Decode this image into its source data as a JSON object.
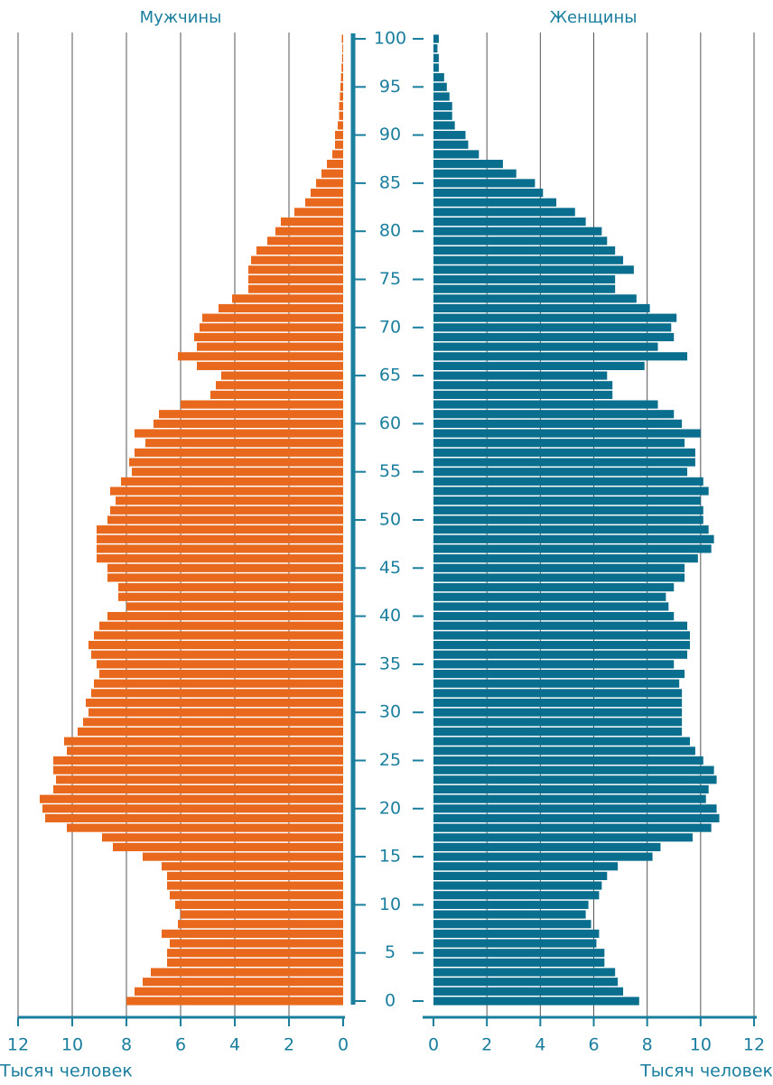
{
  "chart_data": {
    "type": "pyramid",
    "xlabel": "Тысяч человек",
    "xlim": [
      0,
      12
    ],
    "xticks": [
      0,
      2,
      4,
      6,
      8,
      10,
      12
    ],
    "ylim": [
      0,
      100
    ],
    "yticks": [
      0,
      5,
      10,
      15,
      20,
      25,
      30,
      35,
      40,
      45,
      50,
      55,
      60,
      65,
      70,
      75,
      80,
      85,
      90,
      95,
      100
    ],
    "grid": true,
    "y": [
      0,
      1,
      2,
      3,
      4,
      5,
      6,
      7,
      8,
      9,
      10,
      11,
      12,
      13,
      14,
      15,
      16,
      17,
      18,
      19,
      20,
      21,
      22,
      23,
      24,
      25,
      26,
      27,
      28,
      29,
      30,
      31,
      32,
      33,
      34,
      35,
      36,
      37,
      38,
      39,
      40,
      41,
      42,
      43,
      44,
      45,
      46,
      47,
      48,
      49,
      50,
      51,
      52,
      53,
      54,
      55,
      56,
      57,
      58,
      59,
      60,
      61,
      62,
      63,
      64,
      65,
      66,
      67,
      68,
      69,
      70,
      71,
      72,
      73,
      74,
      75,
      76,
      77,
      78,
      79,
      80,
      81,
      82,
      83,
      84,
      85,
      86,
      87,
      88,
      89,
      90,
      91,
      92,
      93,
      94,
      95,
      96,
      97,
      98,
      99,
      100
    ],
    "series": [
      {
        "name": "Мужчины",
        "color": "#e8691e",
        "side": "left",
        "values": [
          8.0,
          7.7,
          7.4,
          7.1,
          6.5,
          6.5,
          6.4,
          6.7,
          6.1,
          6.0,
          6.2,
          6.4,
          6.5,
          6.5,
          6.7,
          7.4,
          8.5,
          8.9,
          10.2,
          11.0,
          11.1,
          11.2,
          10.7,
          10.6,
          10.7,
          10.7,
          10.2,
          10.3,
          9.8,
          9.6,
          9.4,
          9.5,
          9.3,
          9.2,
          9.0,
          9.1,
          9.3,
          9.4,
          9.2,
          9.0,
          8.7,
          8.0,
          8.3,
          8.3,
          8.7,
          8.7,
          9.1,
          9.1,
          9.1,
          9.1,
          8.7,
          8.6,
          8.4,
          8.6,
          8.2,
          7.8,
          7.9,
          7.7,
          7.3,
          7.7,
          7.0,
          6.8,
          6.0,
          4.9,
          4.7,
          4.5,
          5.4,
          6.1,
          5.4,
          5.5,
          5.3,
          5.2,
          4.6,
          4.1,
          3.5,
          3.5,
          3.5,
          3.4,
          3.2,
          2.8,
          2.5,
          2.3,
          1.8,
          1.4,
          1.2,
          1.0,
          0.8,
          0.6,
          0.4,
          0.3,
          0.3,
          0.2,
          0.15,
          0.15,
          0.12,
          0.1,
          0.08,
          0.06,
          0.04,
          0.03,
          0.05
        ]
      },
      {
        "name": "Женщины",
        "color": "#0a6f8e",
        "side": "right",
        "values": [
          7.7,
          7.1,
          6.9,
          6.8,
          6.4,
          6.4,
          6.1,
          6.2,
          5.9,
          5.7,
          5.8,
          6.2,
          6.3,
          6.5,
          6.9,
          8.2,
          8.5,
          9.7,
          10.4,
          10.7,
          10.6,
          10.2,
          10.3,
          10.6,
          10.5,
          10.1,
          9.8,
          9.6,
          9.3,
          9.3,
          9.3,
          9.3,
          9.3,
          9.2,
          9.4,
          9.0,
          9.5,
          9.6,
          9.6,
          9.5,
          9.0,
          8.8,
          8.7,
          9.0,
          9.4,
          9.4,
          9.9,
          10.4,
          10.5,
          10.3,
          10.1,
          10.1,
          10.0,
          10.3,
          10.1,
          9.5,
          9.8,
          9.8,
          9.4,
          10.0,
          9.3,
          9.0,
          8.4,
          6.7,
          6.7,
          6.5,
          7.9,
          9.5,
          8.4,
          9.0,
          8.9,
          9.1,
          8.1,
          7.6,
          6.8,
          6.8,
          7.5,
          7.1,
          6.8,
          6.5,
          6.3,
          5.7,
          5.3,
          4.6,
          4.1,
          3.8,
          3.1,
          2.6,
          1.7,
          1.3,
          1.2,
          0.8,
          0.7,
          0.7,
          0.6,
          0.5,
          0.4,
          0.2,
          0.2,
          0.15,
          0.2
        ]
      }
    ]
  }
}
